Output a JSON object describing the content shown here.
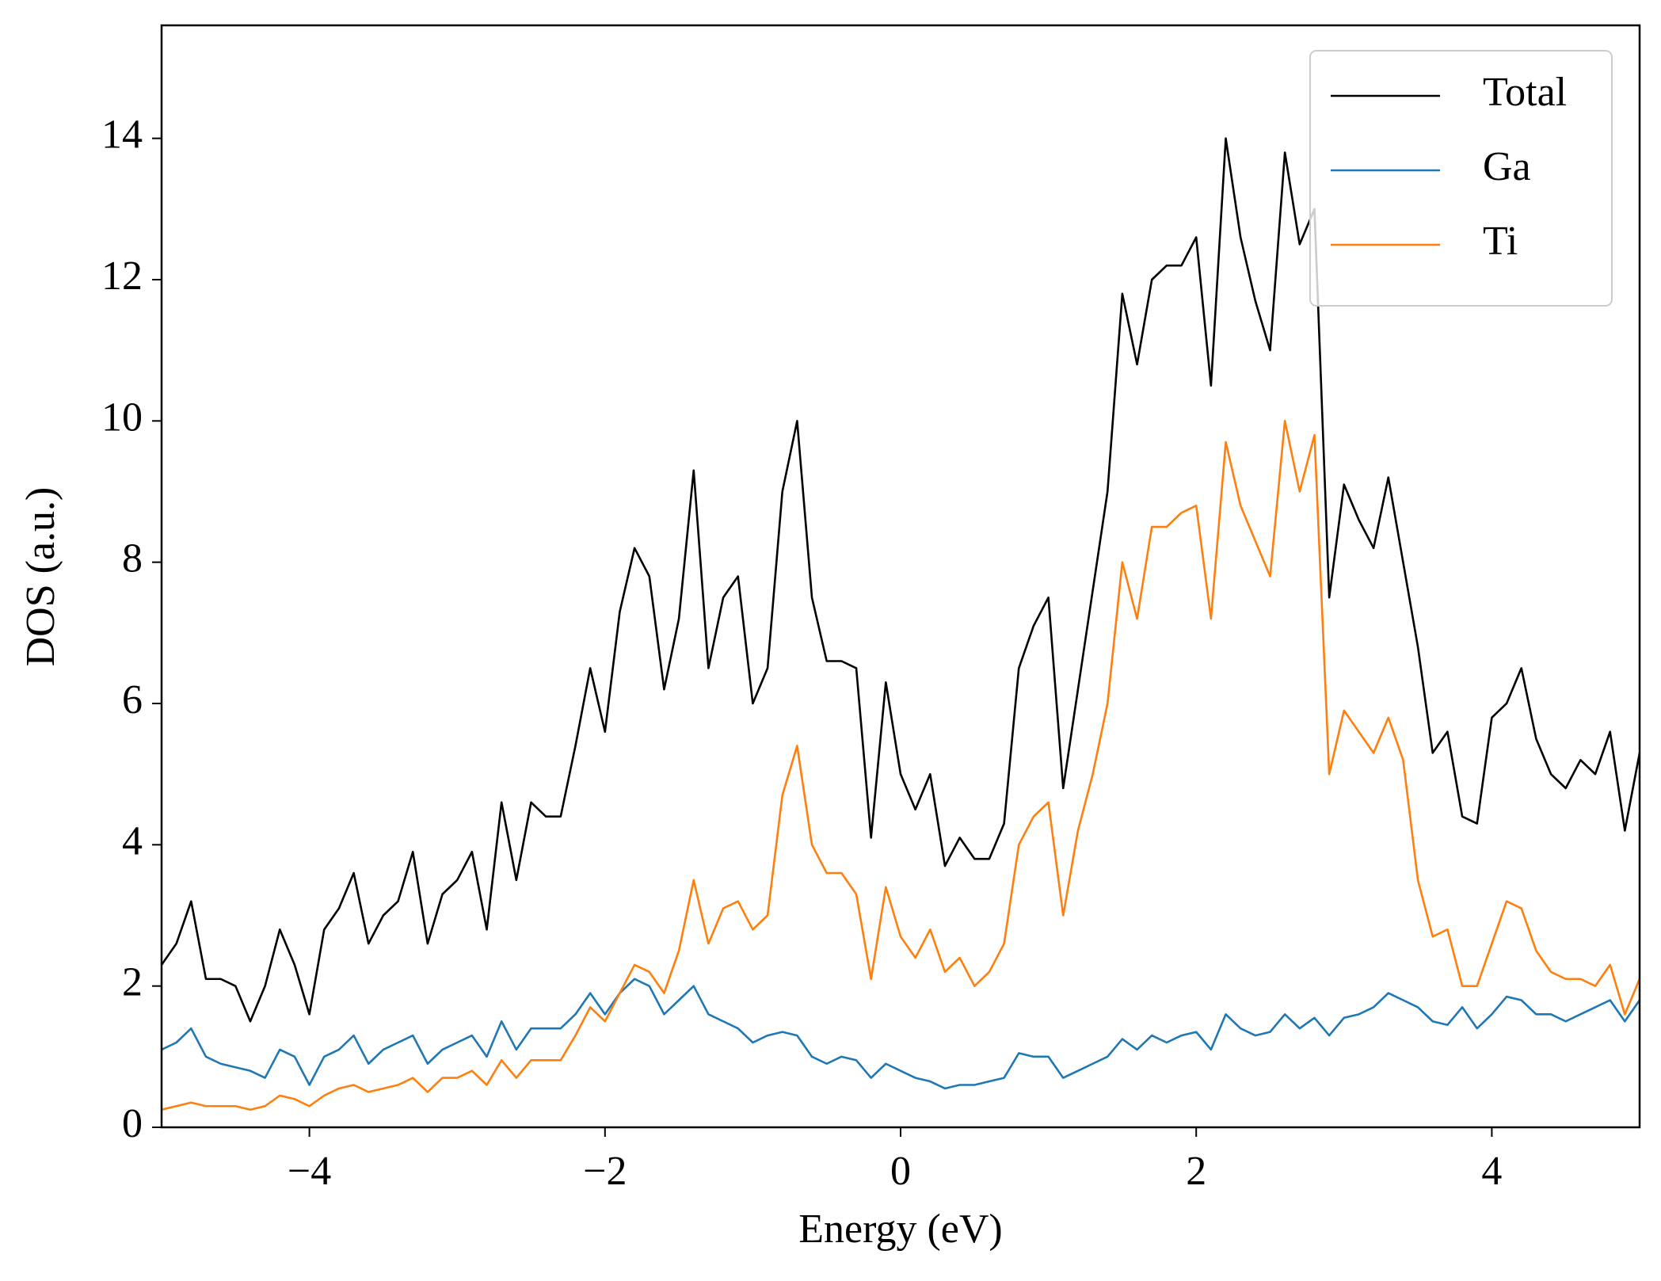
{
  "chart_data": {
    "type": "line",
    "xlabel": "Energy (eV)",
    "ylabel": "DOS (a.u.)",
    "x": [
      -5.0,
      -4.9,
      -4.8,
      -4.7,
      -4.6,
      -4.5,
      -4.4,
      -4.3,
      -4.2,
      -4.1,
      -4.0,
      -3.9,
      -3.8,
      -3.7,
      -3.6,
      -3.5,
      -3.4,
      -3.3,
      -3.2,
      -3.1,
      -3.0,
      -2.9,
      -2.8,
      -2.7,
      -2.6,
      -2.5,
      -2.4,
      -2.3,
      -2.2,
      -2.1,
      -2.0,
      -1.9,
      -1.8,
      -1.7,
      -1.6,
      -1.5,
      -1.4,
      -1.3,
      -1.2,
      -1.1,
      -1.0,
      -0.9,
      -0.8,
      -0.7,
      -0.6,
      -0.5,
      -0.4,
      -0.3,
      -0.2,
      -0.1,
      0.0,
      0.1,
      0.2,
      0.3,
      0.4,
      0.5,
      0.6,
      0.7,
      0.8,
      0.9,
      1.0,
      1.1,
      1.2,
      1.3,
      1.4,
      1.5,
      1.6,
      1.7,
      1.8,
      1.9,
      2.0,
      2.1,
      2.2,
      2.3,
      2.4,
      2.5,
      2.6,
      2.7,
      2.8,
      2.9,
      3.0,
      3.1,
      3.2,
      3.3,
      3.4,
      3.5,
      3.6,
      3.7,
      3.8,
      3.9,
      4.0,
      4.1,
      4.2,
      4.3,
      4.4,
      4.5,
      4.6,
      4.7,
      4.8,
      4.9,
      5.0
    ],
    "series": [
      {
        "name": "Total",
        "color": "#000000",
        "values": [
          2.3,
          2.6,
          3.2,
          2.1,
          2.1,
          2.0,
          1.5,
          2.0,
          2.8,
          2.3,
          1.6,
          2.8,
          3.1,
          3.6,
          2.6,
          3.0,
          3.2,
          3.9,
          2.6,
          3.3,
          3.5,
          3.9,
          2.8,
          4.6,
          3.5,
          4.6,
          4.4,
          4.4,
          5.4,
          6.5,
          5.6,
          7.3,
          8.2,
          7.8,
          6.2,
          7.2,
          9.3,
          6.5,
          7.5,
          7.8,
          6.0,
          6.5,
          9.0,
          10.0,
          7.5,
          6.6,
          6.6,
          6.5,
          4.1,
          6.3,
          5.0,
          4.5,
          5.0,
          3.7,
          4.1,
          3.8,
          3.8,
          4.3,
          6.5,
          7.1,
          7.5,
          4.8,
          6.2,
          7.6,
          9.0,
          11.8,
          10.8,
          12.0,
          12.2,
          12.2,
          12.6,
          10.5,
          14.0,
          12.6,
          11.7,
          11.0,
          13.8,
          12.5,
          13.0,
          7.5,
          9.1,
          8.6,
          8.2,
          9.2,
          8.0,
          6.8,
          5.3,
          5.6,
          4.4,
          4.3,
          5.8,
          6.0,
          6.5,
          5.5,
          5.0,
          4.8,
          5.2,
          5.0,
          5.6,
          4.2,
          5.3
        ]
      },
      {
        "name": "Ga",
        "color": "#1f77b4",
        "values": [
          1.1,
          1.2,
          1.4,
          1.0,
          0.9,
          0.85,
          0.8,
          0.7,
          1.1,
          1.0,
          0.6,
          1.0,
          1.1,
          1.3,
          0.9,
          1.1,
          1.2,
          1.3,
          0.9,
          1.1,
          1.2,
          1.3,
          1.0,
          1.5,
          1.1,
          1.4,
          1.4,
          1.4,
          1.6,
          1.9,
          1.6,
          1.9,
          2.1,
          2.0,
          1.6,
          1.8,
          2.0,
          1.6,
          1.5,
          1.4,
          1.2,
          1.3,
          1.35,
          1.3,
          1.0,
          0.9,
          1.0,
          0.95,
          0.7,
          0.9,
          0.8,
          0.7,
          0.65,
          0.55,
          0.6,
          0.6,
          0.65,
          0.7,
          1.05,
          1.0,
          1.0,
          0.7,
          0.8,
          0.9,
          1.0,
          1.25,
          1.1,
          1.3,
          1.2,
          1.3,
          1.35,
          1.1,
          1.6,
          1.4,
          1.3,
          1.35,
          1.6,
          1.4,
          1.55,
          1.3,
          1.55,
          1.6,
          1.7,
          1.9,
          1.8,
          1.7,
          1.5,
          1.45,
          1.7,
          1.4,
          1.6,
          1.85,
          1.8,
          1.6,
          1.6,
          1.5,
          1.6,
          1.7,
          1.8,
          1.5,
          1.8
        ]
      },
      {
        "name": "Ti",
        "color": "#ff7f0e",
        "values": [
          0.25,
          0.3,
          0.35,
          0.3,
          0.3,
          0.3,
          0.25,
          0.3,
          0.45,
          0.4,
          0.3,
          0.45,
          0.55,
          0.6,
          0.5,
          0.55,
          0.6,
          0.7,
          0.5,
          0.7,
          0.7,
          0.8,
          0.6,
          0.95,
          0.7,
          0.95,
          0.95,
          0.95,
          1.3,
          1.7,
          1.5,
          1.9,
          2.3,
          2.2,
          1.9,
          2.5,
          3.5,
          2.6,
          3.1,
          3.2,
          2.8,
          3.0,
          4.7,
          5.4,
          4.0,
          3.6,
          3.6,
          3.3,
          2.1,
          3.4,
          2.7,
          2.4,
          2.8,
          2.2,
          2.4,
          2.0,
          2.2,
          2.6,
          4.0,
          4.4,
          4.6,
          3.0,
          4.2,
          5.0,
          6.0,
          8.0,
          7.2,
          8.5,
          8.5,
          8.7,
          8.8,
          7.2,
          9.7,
          8.8,
          8.3,
          7.8,
          10.0,
          9.0,
          9.8,
          5.0,
          5.9,
          5.6,
          5.3,
          5.8,
          5.2,
          3.5,
          2.7,
          2.8,
          2.0,
          2.0,
          2.6,
          3.2,
          3.1,
          2.5,
          2.2,
          2.1,
          2.1,
          2.0,
          2.3,
          1.6,
          2.1
        ]
      }
    ],
    "xlim": [
      -5,
      5
    ],
    "ylim": [
      0,
      15.6
    ],
    "xticks": [
      {
        "value": -4,
        "label": "−4"
      },
      {
        "value": -2,
        "label": "−2"
      },
      0,
      2,
      4
    ],
    "yticks": [
      0,
      2,
      4,
      6,
      8,
      10,
      12,
      14
    ],
    "legend": "upper right",
    "grid": false
  }
}
